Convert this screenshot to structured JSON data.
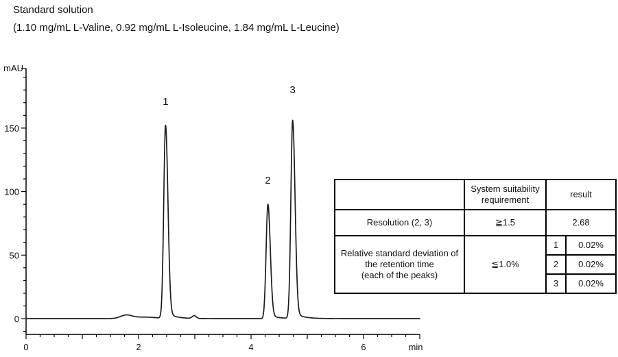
{
  "header": {
    "title": "Standard solution",
    "subtitle": "(1.10 mg/mL L-Valine, 0.92 mg/mL L-Isoleucine, 1.84 mg/mL L-Leucine)"
  },
  "chart_data": {
    "type": "line",
    "kind": "chromatogram",
    "title": "Standard solution",
    "y_axis": {
      "label": "mAU",
      "tick_labels": [
        0,
        50,
        100,
        150
      ],
      "minor_step": 10,
      "range": [
        -12.4,
        197
      ]
    },
    "x_axis": {
      "label": "min",
      "tick_labels": [
        0,
        2,
        4,
        6
      ],
      "minor_step": 0.25,
      "range": [
        0,
        7
      ]
    },
    "baseline_mAU": 0,
    "grid": false,
    "line_color": "#1c1c1c",
    "peaks": [
      {
        "label": "1",
        "retention_time_min": 2.48,
        "height_mAU": 152
      },
      {
        "label": "2",
        "retention_time_min": 4.3,
        "height_mAU": 90
      },
      {
        "label": "3",
        "retention_time_min": 4.74,
        "height_mAU": 156
      }
    ],
    "baseline_bumps": [
      {
        "t": 1.78,
        "height": 2.5,
        "sigma": 0.1
      },
      {
        "t": 2.1,
        "height": 1.2,
        "sigma": 0.22
      },
      {
        "t": 2.99,
        "height": 2.2,
        "sigma": 0.035
      }
    ]
  },
  "table": {
    "header": {
      "criterion": "",
      "requirement": "System suitability\nrequirement",
      "result": "result"
    },
    "resolution_row": {
      "name": "Resolution (2, 3)",
      "requirement": "≧1.5",
      "result": "2.68"
    },
    "rsd_row": {
      "name": "Relative standard deviation of\nthe retention time\n(each of the peaks)",
      "requirement": "≦1.0%",
      "results": [
        {
          "peak": "1",
          "value": "0.02%"
        },
        {
          "peak": "2",
          "value": "0.02%"
        },
        {
          "peak": "3",
          "value": "0.02%"
        }
      ]
    }
  }
}
